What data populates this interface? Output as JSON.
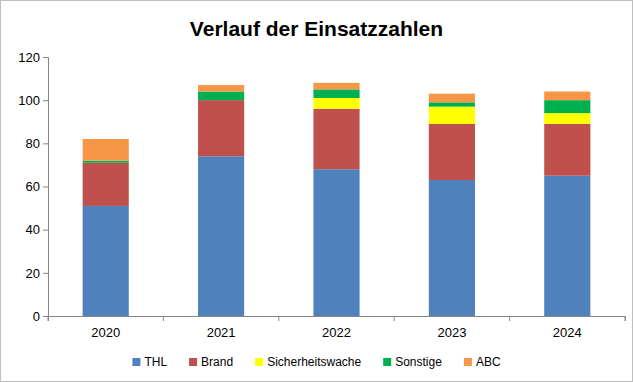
{
  "chart_data": {
    "type": "bar",
    "stacked": true,
    "title": "Verlauf der Einsatzzahlen",
    "categories": [
      "2020",
      "2021",
      "2022",
      "2023",
      "2024"
    ],
    "series": [
      {
        "name": "THL",
        "color": "#4f81bd",
        "values": [
          51,
          74,
          68,
          63,
          65
        ]
      },
      {
        "name": "Brand",
        "color": "#c0504d",
        "values": [
          20,
          26,
          28,
          26,
          24
        ]
      },
      {
        "name": "Sicherheitswache",
        "color": "#ffff00",
        "values": [
          0,
          0,
          5,
          8,
          5
        ]
      },
      {
        "name": "Sonstige",
        "color": "#00b050",
        "values": [
          1,
          4,
          4,
          2,
          6
        ]
      },
      {
        "name": "ABC",
        "color": "#f79646",
        "values": [
          10,
          3,
          3,
          4,
          4
        ]
      }
    ],
    "ylim": [
      0,
      120
    ],
    "yticks": [
      0,
      20,
      40,
      60,
      80,
      100,
      120
    ],
    "grid": false,
    "legend": "bottom"
  }
}
